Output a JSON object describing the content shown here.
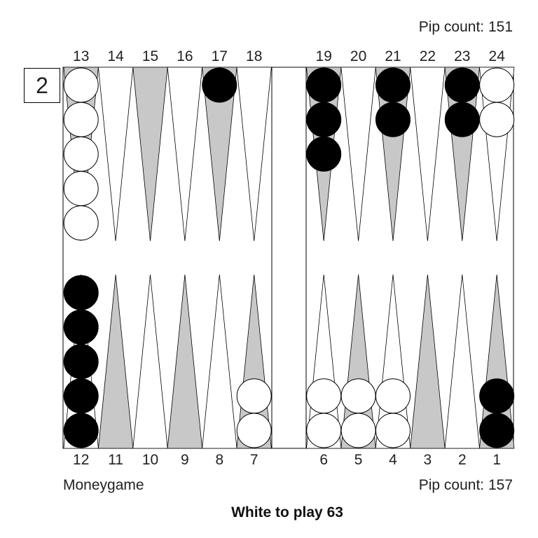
{
  "top_pip_label": "Pip count: 151",
  "bottom_pip_label": "Pip count: 157",
  "game_mode": "Moneygame",
  "status": "White to play 63",
  "cube_value": "2",
  "top_point_labels": [
    "13",
    "14",
    "15",
    "16",
    "17",
    "18",
    "19",
    "20",
    "21",
    "22",
    "23",
    "24"
  ],
  "bottom_point_labels": [
    "12",
    "11",
    "10",
    "9",
    "8",
    "7",
    "6",
    "5",
    "4",
    "3",
    "2",
    "1"
  ],
  "colors": {
    "board": "#ffffff",
    "dark_point": "#c8c8c8",
    "light_point": "#ffffff",
    "white_checker": "#ffffff",
    "black_checker": "#000000",
    "line": "#000000"
  },
  "checkers": [
    {
      "point": 13,
      "color": "white",
      "count": 5
    },
    {
      "point": 17,
      "color": "black",
      "count": 1
    },
    {
      "point": 19,
      "color": "black",
      "count": 3
    },
    {
      "point": 21,
      "color": "black",
      "count": 2
    },
    {
      "point": 23,
      "color": "black",
      "count": 2
    },
    {
      "point": 24,
      "color": "white",
      "count": 2
    },
    {
      "point": 12,
      "color": "black",
      "count": 5
    },
    {
      "point": 7,
      "color": "white",
      "count": 2
    },
    {
      "point": 6,
      "color": "white",
      "count": 2
    },
    {
      "point": 5,
      "color": "white",
      "count": 2
    },
    {
      "point": 4,
      "color": "white",
      "count": 2
    },
    {
      "point": 1,
      "color": "black",
      "count": 2
    }
  ]
}
